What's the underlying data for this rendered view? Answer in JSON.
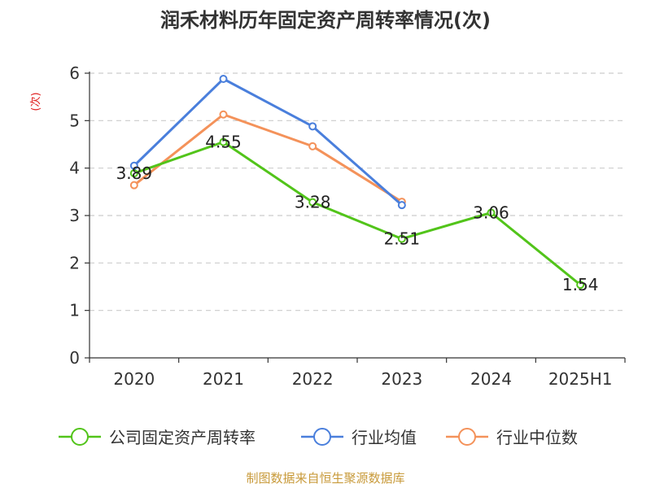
{
  "chart_data": {
    "type": "line",
    "title": "润禾材料历年固定资产周转率情况(次)",
    "ylabel": "(次)",
    "xlabel": "",
    "categories": [
      "2020",
      "2021",
      "2022",
      "2023",
      "2024",
      "2025H1"
    ],
    "ylim": [
      0,
      6
    ],
    "yticks": [
      0,
      1,
      2,
      3,
      4,
      5,
      6
    ],
    "grid": true,
    "legend_position": "bottom",
    "series": [
      {
        "name": "公司固定资产周转率",
        "color": "#52c41a",
        "values": [
          3.89,
          4.55,
          3.28,
          2.51,
          3.06,
          1.54
        ],
        "show_labels": true
      },
      {
        "name": "行业均值",
        "color": "#4a7fdc",
        "values": [
          4.05,
          5.88,
          4.88,
          3.22,
          null,
          null
        ],
        "show_labels": false
      },
      {
        "name": "行业中位数",
        "color": "#f4925a",
        "values": [
          3.64,
          5.13,
          4.46,
          3.29,
          null,
          null
        ],
        "show_labels": false
      }
    ],
    "data_labels": [
      "3.89",
      "4.55",
      "3.28",
      "2.51",
      "3.06",
      "1.54"
    ]
  },
  "source": "制图数据来自恒生聚源数据库"
}
